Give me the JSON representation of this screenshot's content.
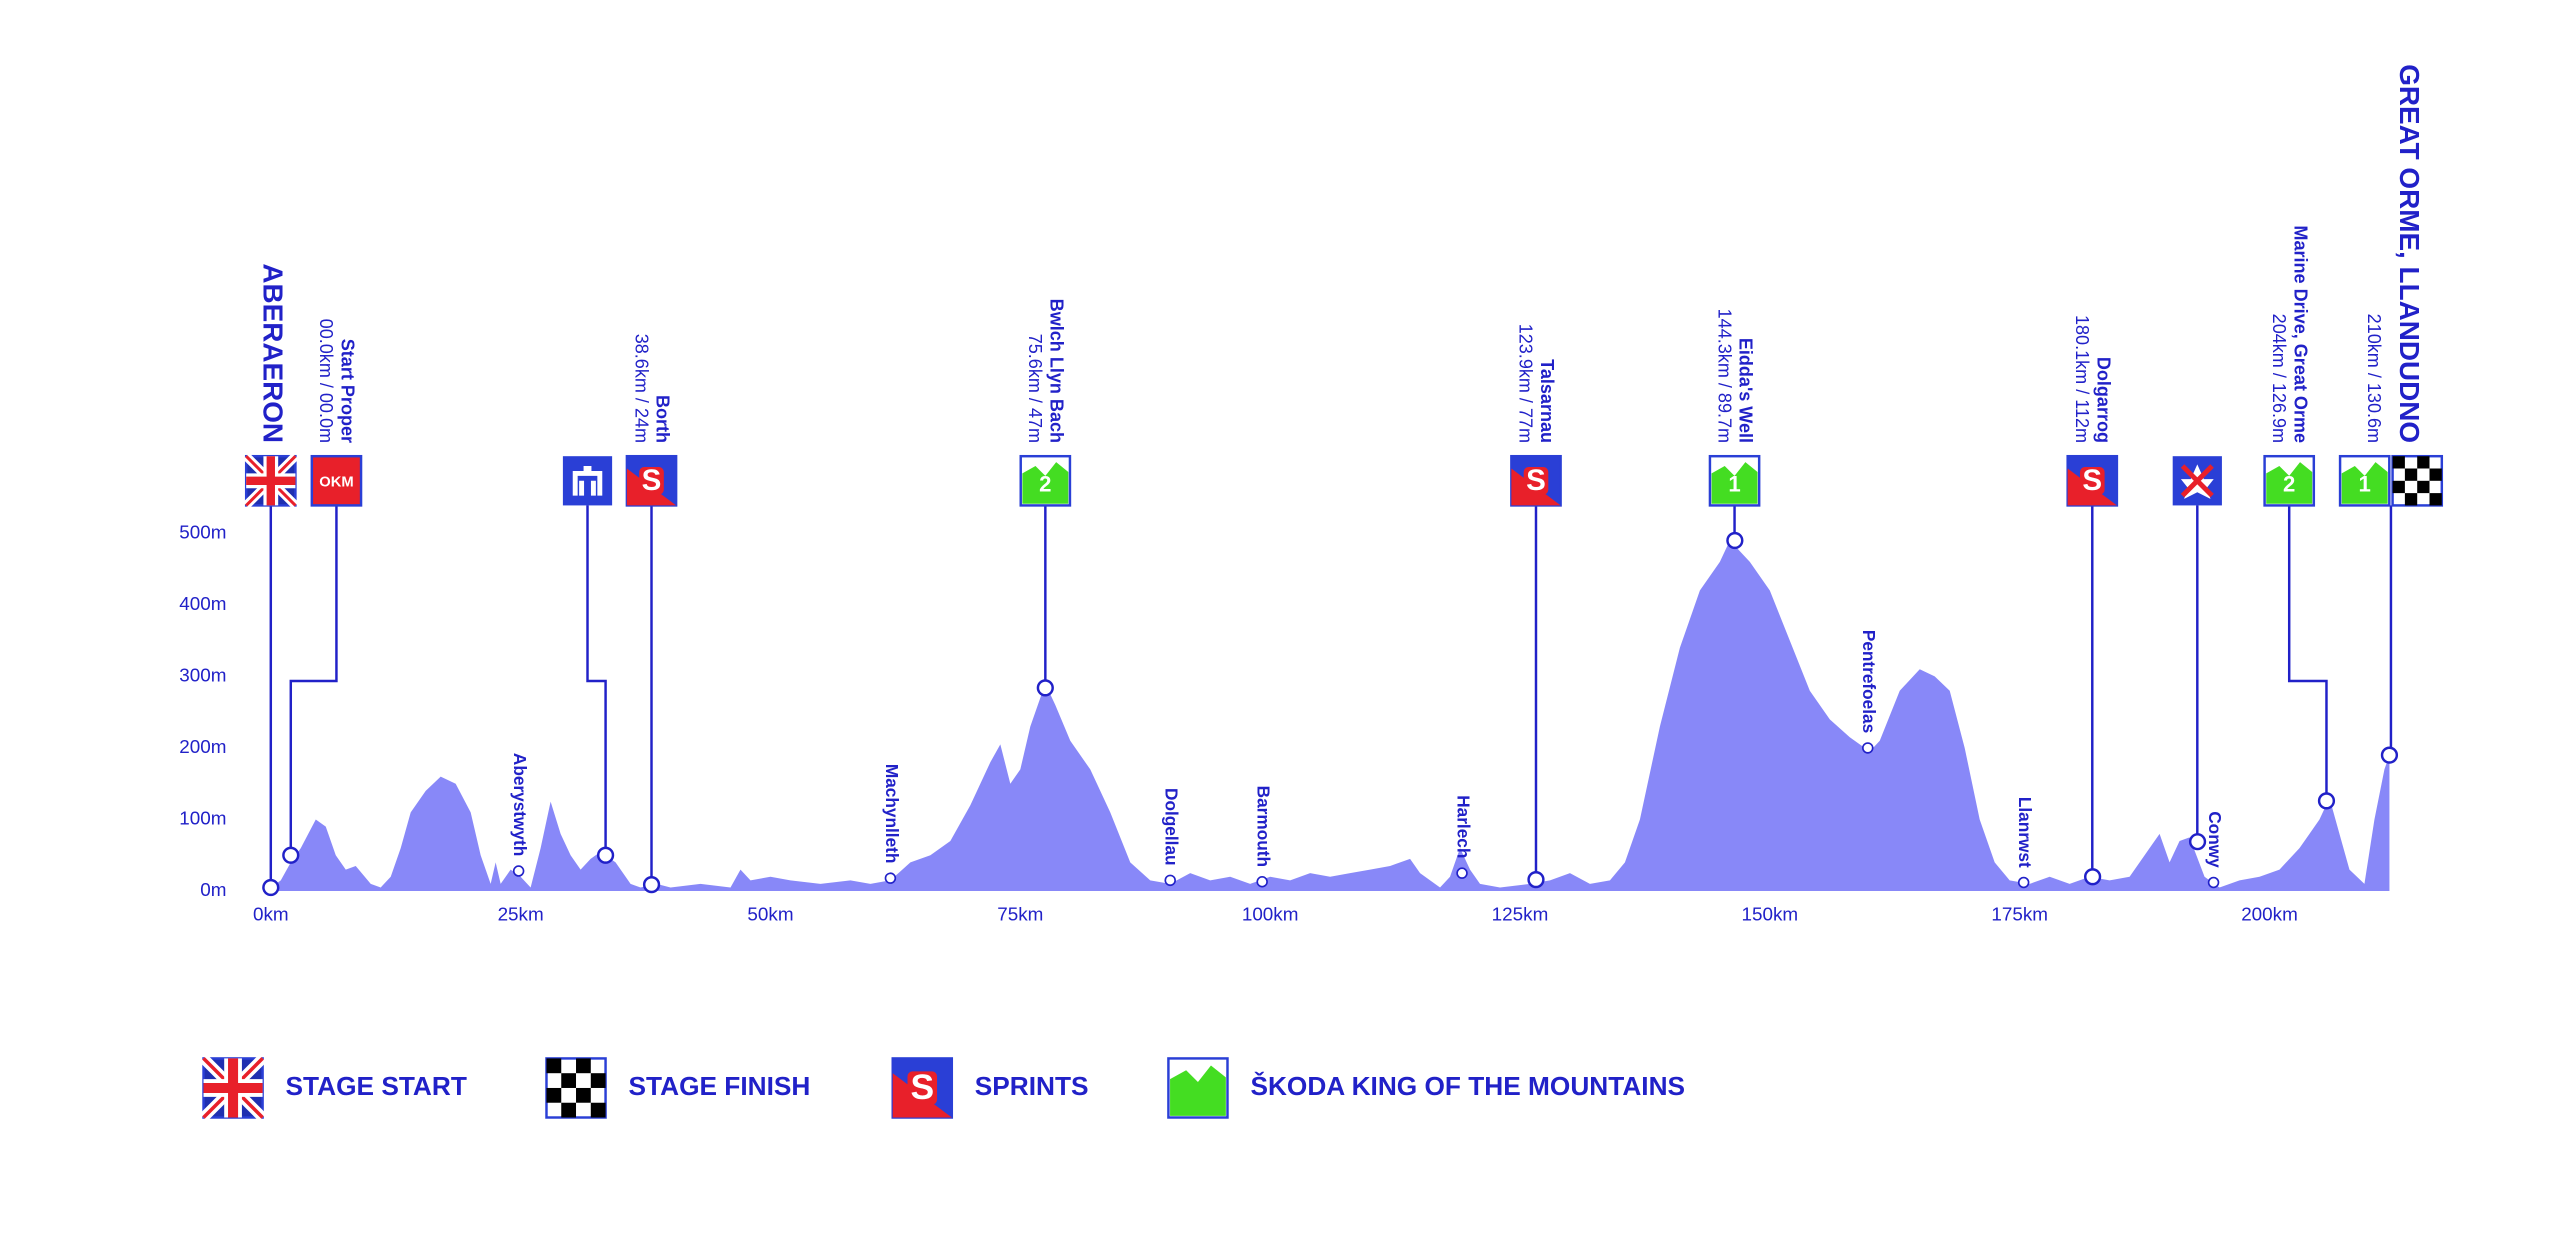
{
  "chart_data": {
    "type": "area",
    "color": "#8888f8",
    "x": [
      0,
      1,
      2,
      3,
      4.5,
      5.5,
      6.5,
      7.5,
      8.5,
      10,
      11,
      12,
      13,
      14,
      15.5,
      17,
      18.5,
      20,
      21,
      22,
      22.5,
      23,
      24,
      25,
      26,
      27,
      28,
      29,
      30,
      31,
      32,
      33,
      34.5,
      36,
      37,
      38.6,
      40,
      43,
      46,
      47,
      48,
      50,
      52,
      55,
      58,
      60,
      62,
      64,
      66,
      68,
      70,
      72,
      73,
      74,
      75,
      76,
      77.5,
      78.5,
      80,
      82,
      84,
      86,
      88,
      90,
      92,
      94,
      96,
      98,
      100,
      102,
      104,
      106,
      108,
      110,
      112,
      114,
      115,
      117,
      118,
      119,
      120,
      121,
      123,
      126,
      128,
      130,
      132,
      134,
      135.5,
      137,
      139,
      141,
      143,
      145,
      146,
      148,
      150,
      152,
      154,
      156,
      158,
      160,
      161,
      163,
      165,
      166.5,
      168,
      169.5,
      171,
      172.5,
      174,
      176,
      178,
      180,
      182,
      184,
      186,
      188,
      189,
      190,
      191,
      192,
      193.5,
      195,
      197,
      199,
      201,
      203,
      204,
      205,
      206,
      207,
      208,
      209.5,
      210.5,
      211.5,
      212
    ],
    "values": [
      5,
      15,
      40,
      60,
      100,
      90,
      50,
      30,
      35,
      10,
      5,
      20,
      60,
      110,
      140,
      160,
      150,
      110,
      50,
      10,
      40,
      10,
      30,
      20,
      5,
      60,
      125,
      80,
      50,
      30,
      45,
      55,
      40,
      10,
      5,
      10,
      5,
      10,
      5,
      30,
      15,
      20,
      15,
      10,
      15,
      10,
      15,
      40,
      50,
      70,
      120,
      180,
      205,
      150,
      170,
      230,
      290,
      260,
      210,
      170,
      110,
      40,
      15,
      10,
      25,
      15,
      20,
      10,
      20,
      15,
      25,
      20,
      25,
      30,
      35,
      45,
      25,
      5,
      20,
      60,
      30,
      10,
      5,
      10,
      15,
      25,
      10,
      15,
      40,
      100,
      230,
      340,
      420,
      460,
      490,
      460,
      420,
      350,
      280,
      240,
      215,
      195,
      210,
      280,
      310,
      300,
      280,
      200,
      100,
      40,
      15,
      10,
      20,
      10,
      20,
      15,
      20,
      60,
      80,
      40,
      70,
      75,
      20,
      5,
      15,
      20,
      30,
      60,
      80,
      100,
      130,
      80,
      30,
      10,
      100,
      170,
      190
    ],
    "xlim": [
      0,
      212
    ],
    "ylim": [
      0,
      500
    ],
    "xticks": [
      {
        "value": 0,
        "label": "0km"
      },
      {
        "value": 25,
        "label": "25km"
      },
      {
        "value": 50,
        "label": "50km"
      },
      {
        "value": 75,
        "label": "75km"
      },
      {
        "value": 100,
        "label": "100km"
      },
      {
        "value": 125,
        "label": "125km"
      },
      {
        "value": 150,
        "label": "150km"
      },
      {
        "value": 175,
        "label": "175km"
      },
      {
        "value": 200,
        "label": "200km"
      }
    ],
    "yticks": [
      {
        "value": 0,
        "label": "0m"
      },
      {
        "value": 100,
        "label": "100m"
      },
      {
        "value": 200,
        "label": "200m"
      },
      {
        "value": 300,
        "label": "300m"
      },
      {
        "value": 400,
        "label": "400m"
      },
      {
        "value": 500,
        "label": "500m"
      }
    ],
    "waypoints": [
      {
        "name": "Aberystwyth",
        "x": 24.8,
        "y": 28
      },
      {
        "name": "Machynlleth",
        "x": 62,
        "y": 18
      },
      {
        "name": "Dolgellau",
        "x": 90,
        "y": 15
      },
      {
        "name": "Barmouth",
        "x": 99.2,
        "y": 13
      },
      {
        "name": "Harlech",
        "x": 119.2,
        "y": 25
      },
      {
        "name": "Pentrefoelas",
        "x": 159.8,
        "y": 200
      },
      {
        "name": "Llanrwst",
        "x": 175.4,
        "y": 12
      },
      {
        "name": "Conwy",
        "x": 194.4,
        "y": 12
      }
    ],
    "markers": [
      {
        "title": "ABERAERON",
        "x": 0,
        "y": 5
      },
      {
        "name": "Start Proper",
        "detail": "00.0km / 00.0m",
        "icon_text": "OKM",
        "x": 2,
        "y": 50
      },
      {
        "x": 33.5,
        "y": 50
      },
      {
        "name": "Borth",
        "detail": "38.6km / 24m",
        "icon_text": "S",
        "x": 38.1,
        "y": 9
      },
      {
        "name": "Bwlch Llyn Bach",
        "detail": "75.6km / 47m",
        "icon_text": "2",
        "x": 77.5,
        "y": 284
      },
      {
        "name": "Talsarnau",
        "detail": "123.9km / 77m",
        "icon_text": "S",
        "x": 126.6,
        "y": 16
      },
      {
        "name": "Eidda's Well",
        "detail": "144.3km / 89.7m",
        "icon_text": "1",
        "x": 146.5,
        "y": 490
      },
      {
        "name": "Dolgarrog",
        "detail": "180.1km / 112m",
        "icon_text": "S",
        "x": 182.3,
        "y": 20
      },
      {
        "x": 192.8,
        "y": 69
      },
      {
        "name": "Marine Drive, Great Orme",
        "detail": "204km / 126.9m",
        "icon_text": "2",
        "x": 205.7,
        "y": 126
      },
      {
        "title": "GREAT ORME, LLANDUDNO",
        "detail": "210km / 130.6m",
        "icon_text": "1",
        "x": 212,
        "y": 190
      }
    ],
    "legend": [
      "STAGE START",
      "STAGE FINISH",
      "SPRINTS",
      "ŠKODA KING OF THE MOUNTAINS"
    ]
  }
}
